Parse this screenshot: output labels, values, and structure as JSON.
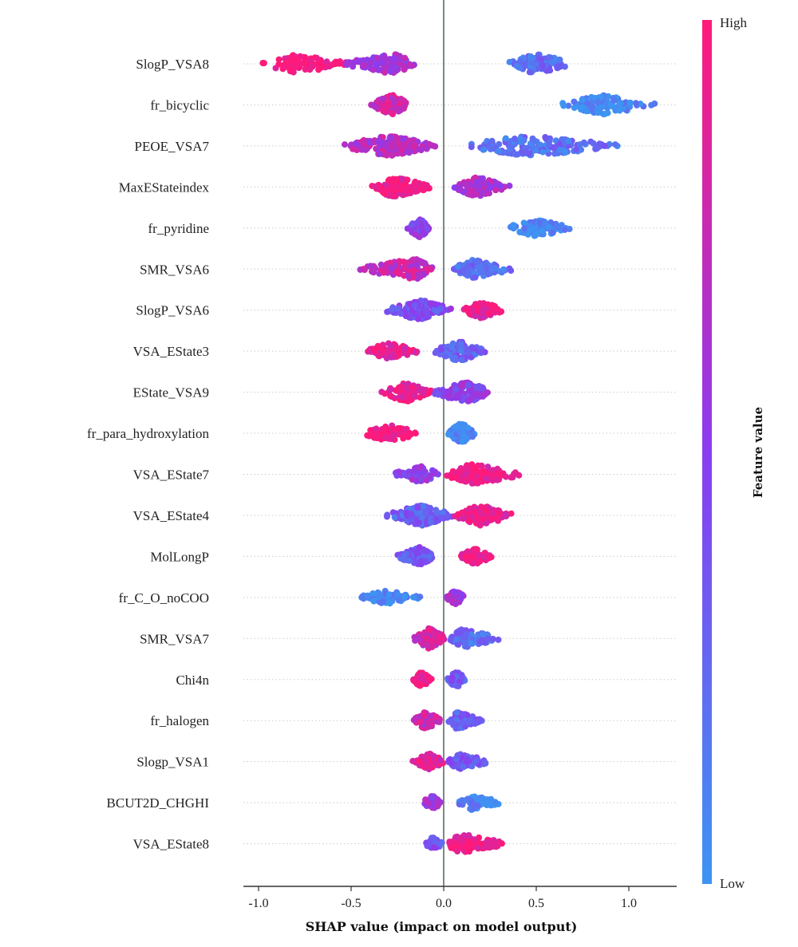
{
  "chart_data": {
    "type": "scatter",
    "subtype": "shap-beeswarm",
    "title": "",
    "xlabel": "SHAP value (impact on model output)",
    "ylabel": "",
    "xlim": [
      -1.12,
      1.25
    ],
    "xticks": [
      -1.0,
      -0.5,
      0.0,
      0.5,
      1.0
    ],
    "xtick_labels": [
      "-1.0",
      "-0.5",
      "0.0",
      "0.5",
      "1.0"
    ],
    "grid": "dotted horizontal row lines",
    "colorbar": {
      "title": "Feature value",
      "high_label": "High",
      "low_label": "Low",
      "high_color": "#ff1a7a",
      "mid_color": "#8a3cf0",
      "low_color": "#3d94f2",
      "placement": "right"
    },
    "features": [
      {
        "name": "SlogP_VSA8",
        "clusters": [
          {
            "range": [
              -1.0,
              -0.5
            ],
            "center": -0.8,
            "n": 90,
            "feature_value": 1.0
          },
          {
            "range": [
              -0.55,
              -0.15
            ],
            "center": -0.27,
            "n": 110,
            "feature_value": 0.6
          },
          {
            "range": [
              0.35,
              0.7
            ],
            "center": 0.5,
            "n": 110,
            "feature_value": 0.22
          }
        ]
      },
      {
        "name": "fr_bicyclic",
        "clusters": [
          {
            "range": [
              -0.4,
              -0.18
            ],
            "center": -0.28,
            "n": 110,
            "feature_value": 0.82
          },
          {
            "range": [
              0.62,
              1.15
            ],
            "center": 0.85,
            "n": 100,
            "feature_value": 0.05
          }
        ]
      },
      {
        "name": "PEOE_VSA7",
        "clusters": [
          {
            "range": [
              -0.55,
              -0.02
            ],
            "center": -0.3,
            "n": 170,
            "feature_value": 0.7
          },
          {
            "range": [
              0.1,
              0.97
            ],
            "center": 0.45,
            "n": 150,
            "feature_value": 0.2
          }
        ]
      },
      {
        "name": "MaxEStateindex",
        "clusters": [
          {
            "range": [
              -0.4,
              -0.05
            ],
            "center": -0.28,
            "n": 130,
            "feature_value": 0.95
          },
          {
            "range": [
              0.05,
              0.37
            ],
            "center": 0.17,
            "n": 110,
            "feature_value": 0.65
          }
        ]
      },
      {
        "name": "fr_pyridine",
        "clusters": [
          {
            "range": [
              -0.2,
              -0.07
            ],
            "center": -0.13,
            "n": 90,
            "feature_value": 0.5
          },
          {
            "range": [
              0.32,
              0.7
            ],
            "center": 0.5,
            "n": 80,
            "feature_value": 0.05
          }
        ]
      },
      {
        "name": "SMR_VSA6",
        "clusters": [
          {
            "range": [
              -0.47,
              -0.05
            ],
            "center": -0.15,
            "n": 120,
            "feature_value": 0.75
          },
          {
            "range": [
              0.05,
              0.37
            ],
            "center": 0.16,
            "n": 100,
            "feature_value": 0.22
          }
        ]
      },
      {
        "name": "SlogP_VSA6",
        "clusters": [
          {
            "range": [
              -0.32,
              0.05
            ],
            "center": -0.12,
            "n": 120,
            "feature_value": 0.4
          },
          {
            "range": [
              0.1,
              0.33
            ],
            "center": 0.2,
            "n": 80,
            "feature_value": 0.9
          }
        ]
      },
      {
        "name": "VSA_EState3",
        "clusters": [
          {
            "range": [
              -0.43,
              -0.12
            ],
            "center": -0.3,
            "n": 80,
            "feature_value": 0.9
          },
          {
            "range": [
              -0.05,
              0.23
            ],
            "center": 0.08,
            "n": 110,
            "feature_value": 0.3
          }
        ]
      },
      {
        "name": "EState_VSA9",
        "clusters": [
          {
            "range": [
              -0.35,
              -0.05
            ],
            "center": -0.2,
            "n": 100,
            "feature_value": 0.9
          },
          {
            "range": [
              -0.07,
              0.26
            ],
            "center": 0.13,
            "n": 110,
            "feature_value": 0.5
          }
        ]
      },
      {
        "name": "fr_para_hydroxylation",
        "clusters": [
          {
            "range": [
              -0.45,
              -0.12
            ],
            "center": -0.3,
            "n": 80,
            "feature_value": 1.0
          },
          {
            "range": [
              0.02,
              0.18
            ],
            "center": 0.09,
            "n": 110,
            "feature_value": 0.05
          }
        ]
      },
      {
        "name": "VSA_EState7",
        "clusters": [
          {
            "range": [
              -0.28,
              -0.02
            ],
            "center": -0.12,
            "n": 80,
            "feature_value": 0.5
          },
          {
            "range": [
              0.0,
              0.44
            ],
            "center": 0.15,
            "n": 130,
            "feature_value": 0.95
          }
        ]
      },
      {
        "name": "VSA_EState4",
        "clusters": [
          {
            "range": [
              -0.32,
              0.05
            ],
            "center": -0.12,
            "n": 150,
            "feature_value": 0.3
          },
          {
            "range": [
              0.05,
              0.37
            ],
            "center": 0.2,
            "n": 110,
            "feature_value": 0.9
          }
        ]
      },
      {
        "name": "MolLongP",
        "clusters": [
          {
            "range": [
              -0.25,
              -0.05
            ],
            "center": -0.13,
            "n": 90,
            "feature_value": 0.35
          },
          {
            "range": [
              0.07,
              0.27
            ],
            "center": 0.17,
            "n": 70,
            "feature_value": 0.95
          }
        ]
      },
      {
        "name": "fr_C_O_noCOO",
        "clusters": [
          {
            "range": [
              -0.47,
              -0.12
            ],
            "center": -0.3,
            "n": 60,
            "feature_value": 0.05
          },
          {
            "range": [
              0.01,
              0.12
            ],
            "center": 0.06,
            "n": 60,
            "feature_value": 0.6
          }
        ]
      },
      {
        "name": "SMR_VSA7",
        "clusters": [
          {
            "range": [
              -0.17,
              0.02
            ],
            "center": -0.08,
            "n": 110,
            "feature_value": 0.8
          },
          {
            "range": [
              0.03,
              0.3
            ],
            "center": 0.1,
            "n": 100,
            "feature_value": 0.22
          }
        ]
      },
      {
        "name": "Chi4n",
        "clusters": [
          {
            "range": [
              -0.17,
              -0.06
            ],
            "center": -0.12,
            "n": 70,
            "feature_value": 0.95
          },
          {
            "range": [
              0.02,
              0.12
            ],
            "center": 0.07,
            "n": 80,
            "feature_value": 0.35
          }
        ]
      },
      {
        "name": "fr_halogen",
        "clusters": [
          {
            "range": [
              -0.17,
              0.0
            ],
            "center": -0.1,
            "n": 80,
            "feature_value": 0.75
          },
          {
            "range": [
              0.02,
              0.22
            ],
            "center": 0.07,
            "n": 80,
            "feature_value": 0.3
          }
        ]
      },
      {
        "name": "Slogp_VSA1",
        "clusters": [
          {
            "range": [
              -0.17,
              0.0
            ],
            "center": -0.07,
            "n": 80,
            "feature_value": 0.9
          },
          {
            "range": [
              0.02,
              0.26
            ],
            "center": 0.08,
            "n": 70,
            "feature_value": 0.35
          }
        ]
      },
      {
        "name": "BCUT2D_CHGHI",
        "clusters": [
          {
            "range": [
              -0.12,
              -0.01
            ],
            "center": -0.06,
            "n": 60,
            "feature_value": 0.6
          },
          {
            "range": [
              0.07,
              0.33
            ],
            "center": 0.15,
            "n": 60,
            "feature_value": 0.1
          }
        ]
      },
      {
        "name": "VSA_EState8",
        "clusters": [
          {
            "range": [
              -0.1,
              0.0
            ],
            "center": -0.06,
            "n": 50,
            "feature_value": 0.4
          },
          {
            "range": [
              0.0,
              0.34
            ],
            "center": 0.1,
            "n": 100,
            "feature_value": 0.95
          }
        ]
      }
    ]
  }
}
